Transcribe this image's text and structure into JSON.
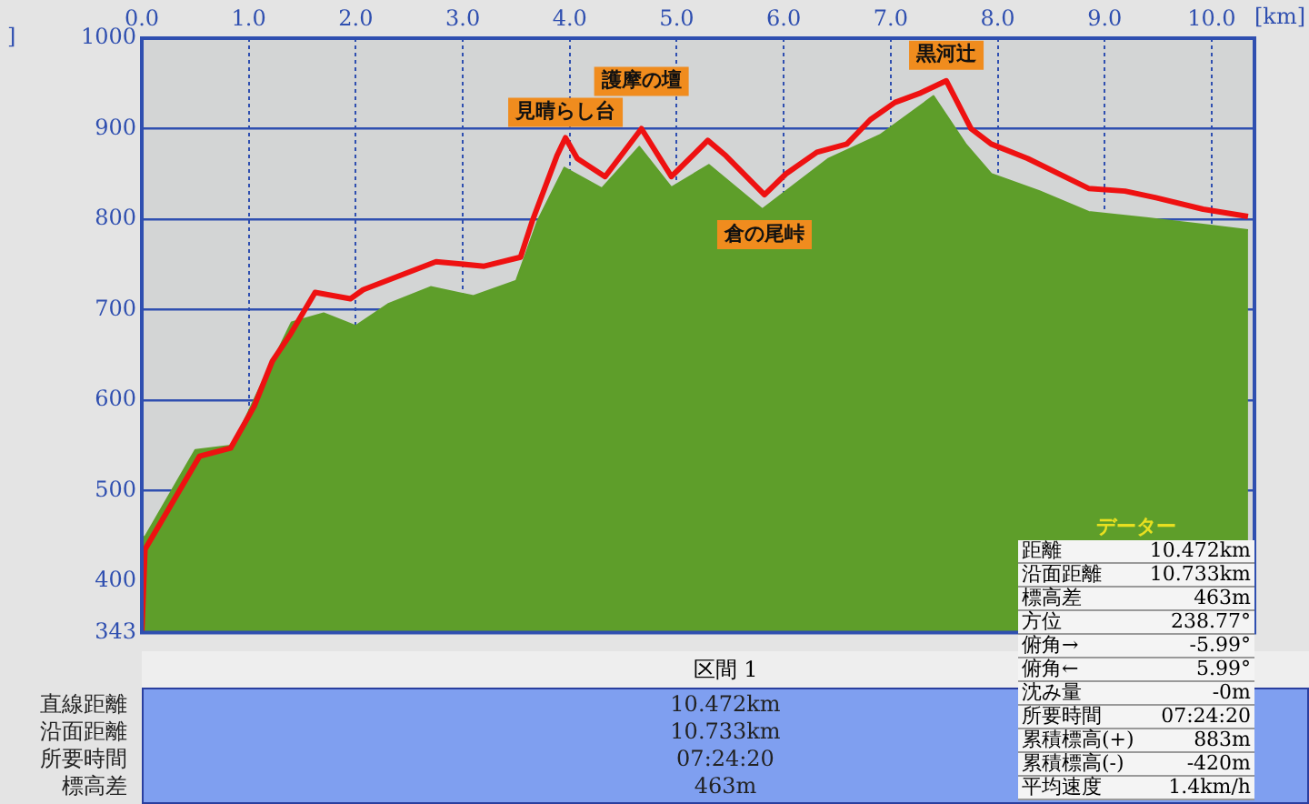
{
  "chart_data": [
    {
      "type": "area",
      "xlabel": "[km]",
      "ylabel": "]",
      "xlim": [
        0,
        10.4
      ],
      "ylim": [
        343,
        1000
      ],
      "xticks": [
        {
          "value": 0,
          "label": "0.0"
        },
        {
          "value": 1,
          "label": "1.0"
        },
        {
          "value": 2,
          "label": "2.0"
        },
        {
          "value": 3,
          "label": "3.0"
        },
        {
          "value": 4,
          "label": "4.0"
        },
        {
          "value": 5,
          "label": "5.0"
        },
        {
          "value": 6,
          "label": "6.0"
        },
        {
          "value": 7,
          "label": "7.0"
        },
        {
          "value": 8,
          "label": "8.0"
        },
        {
          "value": 9,
          "label": "9.0"
        },
        {
          "value": 10,
          "label": "10.0"
        }
      ],
      "yticks": [
        343,
        400,
        500,
        600,
        700,
        800,
        900,
        1000
      ],
      "grid": true,
      "series": [
        {
          "type": "area",
          "color": "#5e9e2a",
          "x": [
            0,
            0.03,
            0.5,
            0.85,
            1.1,
            1.4,
            1.7,
            2.0,
            2.3,
            2.7,
            3.1,
            3.5,
            3.7,
            3.95,
            4.3,
            4.65,
            4.95,
            5.3,
            5.8,
            6.42,
            6.9,
            7.4,
            7.7,
            7.94,
            8.39,
            8.85,
            9.41,
            9.92,
            10.34
          ],
          "values": [
            449,
            449,
            545,
            550,
            613,
            686,
            696,
            682,
            706,
            725,
            715,
            732,
            798,
            857,
            834,
            880,
            835,
            860,
            811,
            867,
            893,
            936,
            883,
            850,
            831,
            808,
            801,
            794,
            788
          ]
        },
        {
          "type": "line",
          "color": "#ee1111",
          "x": [
            0,
            0.03,
            0.54,
            0.83,
            1.05,
            1.22,
            1.39,
            1.62,
            1.95,
            2.07,
            2.75,
            3.2,
            3.54,
            3.65,
            3.88,
            3.96,
            4.07,
            4.33,
            4.67,
            4.95,
            5.29,
            5.46,
            5.82,
            6.02,
            6.31,
            6.59,
            6.81,
            7.04,
            7.27,
            7.52,
            7.75,
            7.94,
            8.28,
            8.85,
            9.19,
            9.47,
            9.92,
            10.34
          ],
          "values": [
            343,
            435,
            538,
            547,
            593,
            643,
            673,
            719,
            712,
            722,
            753,
            748,
            758,
            798,
            870,
            890,
            867,
            847,
            900,
            847,
            887,
            870,
            827,
            850,
            874,
            883,
            910,
            929,
            939,
            953,
            900,
            883,
            867,
            834,
            831,
            824,
            811,
            803
          ]
        }
      ],
      "annotations": [
        {
          "text": "見晴らし台",
          "x": 3.96,
          "y": 890
        },
        {
          "text": "護摩の壇",
          "x": 4.67,
          "y": 900
        },
        {
          "text": "倉の尾峠",
          "x": 5.82,
          "y": 827
        },
        {
          "text": "黒河辻",
          "x": 7.52,
          "y": 953
        }
      ]
    },
    {
      "type": "other",
      "title": "区間 1",
      "annotations": [
        "直線距離",
        "10.472km",
        "沿面距離",
        "10.733km",
        "所要時間",
        "07:24:20",
        "標高差",
        "463m"
      ]
    },
    {
      "type": "other",
      "title": "データー",
      "annotations": [
        "距離",
        "10.472km",
        "沿面距離",
        "10.733km",
        "標高差",
        "463m",
        "方位",
        "238.77°",
        "俯角→",
        "-5.99°",
        "俯角←",
        "5.99°",
        "沈み量",
        "-0m",
        "所要時間",
        "07:24:20",
        "累積標高(+)",
        "883m",
        "累積標高(-)",
        "-420m",
        "平均速度",
        "1.4km/h"
      ]
    }
  ]
}
